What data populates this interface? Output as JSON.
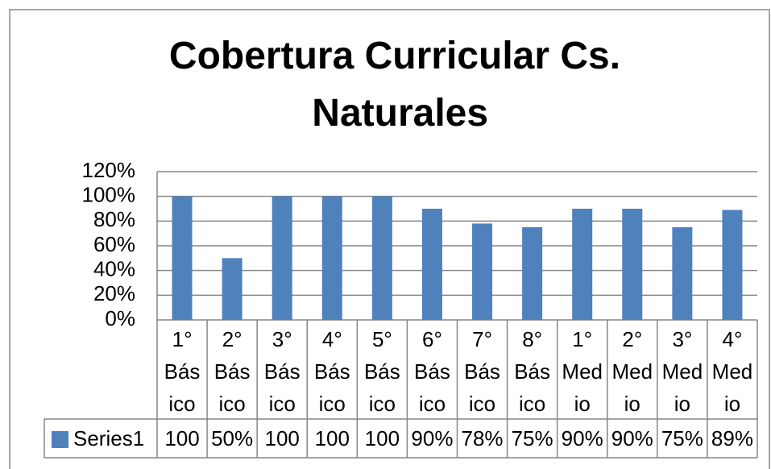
{
  "chart_data": {
    "type": "bar",
    "title": "Cobertura Curricular Cs. Naturales",
    "categories": [
      "1° Básico",
      "2° Básico",
      "3° Básico",
      "4° Básico",
      "5° Básico",
      "6° Básico",
      "7° Básico",
      "8° Básico",
      "1° Medio",
      "2° Medio",
      "3° Medio",
      "4° Medio"
    ],
    "series": [
      {
        "name": "Series1",
        "color": "#4f81bd",
        "values": [
          100,
          50,
          100,
          100,
          100,
          90,
          78,
          75,
          90,
          90,
          75,
          89
        ],
        "value_labels": [
          "100",
          "50%",
          "100",
          "100",
          "100",
          "90%",
          "78%",
          "75%",
          "90%",
          "90%",
          "75%",
          "89%"
        ]
      }
    ],
    "ylim": [
      0,
      120
    ],
    "yticks": [
      {
        "value": 0,
        "label": "0%"
      },
      {
        "value": 20,
        "label": "20%"
      },
      {
        "value": 40,
        "label": "40%"
      },
      {
        "value": 60,
        "label": "60%"
      },
      {
        "value": 80,
        "label": "80%"
      },
      {
        "value": 100,
        "label": "100%"
      },
      {
        "value": 120,
        "label": "120%"
      }
    ],
    "grid": true
  }
}
